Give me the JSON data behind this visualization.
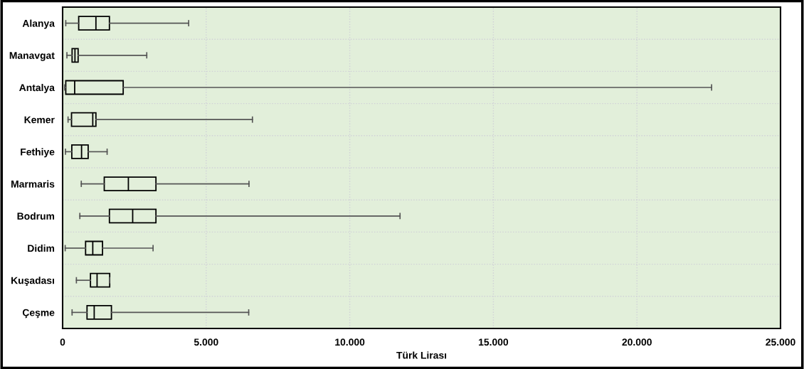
{
  "chart_data": {
    "type": "box",
    "orientation": "horizontal",
    "xlabel": "Türk Lirası",
    "categories": [
      "Alanya",
      "Manavgat",
      "Antalya",
      "Kemer",
      "Fethiye",
      "Marmaris",
      "Bodrum",
      "Didim",
      "Kuşadası",
      "Çeşme"
    ],
    "boxes": [
      {
        "low": 110,
        "q1": 560,
        "median": 1160,
        "q3": 1630,
        "high": 4390
      },
      {
        "low": 150,
        "q1": 330,
        "median": 430,
        "q3": 540,
        "high": 2930
      },
      {
        "low": 70,
        "q1": 110,
        "median": 420,
        "q3": 2110,
        "high": 22600
      },
      {
        "low": 190,
        "q1": 310,
        "median": 1050,
        "q3": 1160,
        "high": 6610
      },
      {
        "low": 100,
        "q1": 320,
        "median": 660,
        "q3": 890,
        "high": 1550
      },
      {
        "low": 650,
        "q1": 1450,
        "median": 2290,
        "q3": 3250,
        "high": 6490
      },
      {
        "low": 600,
        "q1": 1630,
        "median": 2440,
        "q3": 3250,
        "high": 11750
      },
      {
        "low": 90,
        "q1": 800,
        "median": 1050,
        "q3": 1390,
        "high": 3150
      },
      {
        "low": 480,
        "q1": 970,
        "median": 1200,
        "q3": 1640,
        "high": 1640
      },
      {
        "low": 330,
        "q1": 850,
        "median": 1100,
        "q3": 1700,
        "high": 6480
      }
    ],
    "xlim": [
      0,
      25000
    ],
    "xticks": [
      0,
      {
        "value": 5000,
        "label": "5.000"
      },
      {
        "value": 10000,
        "label": "10.000"
      },
      {
        "value": 15000,
        "label": "15.000"
      },
      {
        "value": 20000,
        "label": "20.000"
      },
      {
        "value": 25000,
        "label": "25.000"
      }
    ],
    "grid": true
  }
}
